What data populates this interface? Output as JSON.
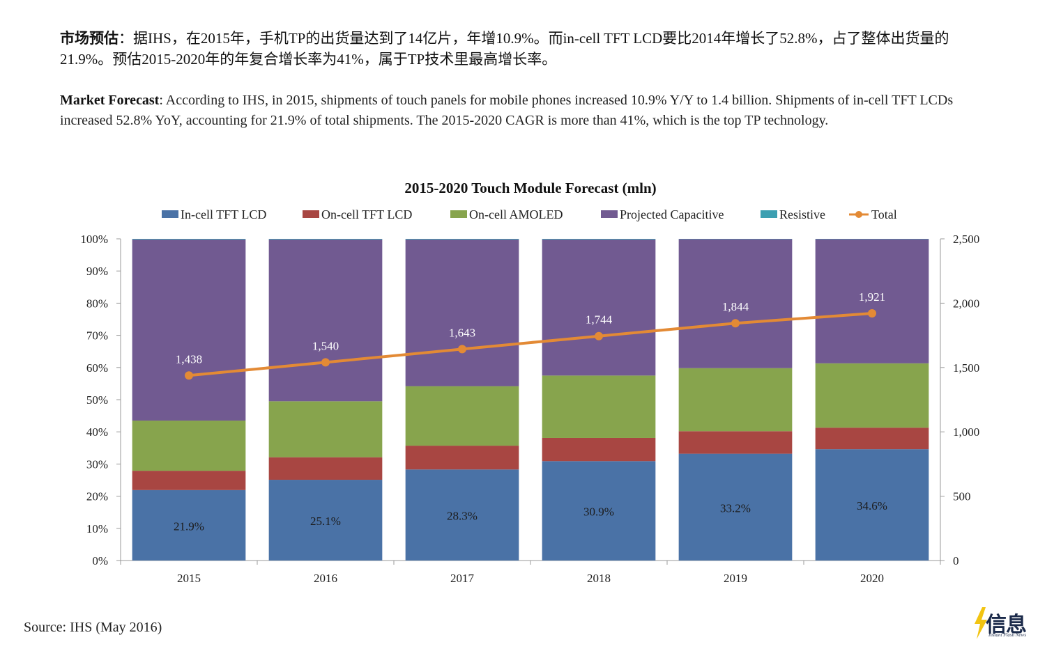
{
  "intro": {
    "zh_heading": "市场预估",
    "zh_body": "：据IHS，在2015年，手机TP的出货量达到了14亿片，年增10.9%。而in-cell TFT LCD要比2014年增长了52.8%，占了整体出货量的21.9%。预估2015-2020年的年复合增长率为41%，属于TP技术里最高增长率。",
    "en_heading": "Market Forecast",
    "en_body": ": According to IHS,  in 2015, shipments of touch panels for mobile phones increased 10.9% Y/Y to 1.4 billion. Shipments of in-cell TFT LCDs increased 52.8% YoY, accounting for 21.9% of total shipments. The 2015-2020 CAGR is more than 41%, which is the top TP technology."
  },
  "chart_data": {
    "type": "bar",
    "stacked": true,
    "title": "2015-2020 Touch Module Forecast (mln)",
    "categories": [
      "2015",
      "2016",
      "2017",
      "2018",
      "2019",
      "2020"
    ],
    "y_left": {
      "ticks": [
        "0%",
        "10%",
        "20%",
        "30%",
        "40%",
        "50%",
        "60%",
        "70%",
        "80%",
        "90%",
        "100%"
      ],
      "range": [
        0,
        100
      ]
    },
    "y_right": {
      "ticks": [
        "0",
        "500",
        "1,000",
        "1,500",
        "2,000",
        "2,500"
      ],
      "range": [
        0,
        2500
      ]
    },
    "legend_position": "top",
    "series": [
      {
        "name": "In-cell TFT LCD",
        "color": "#4a72a6",
        "values": [
          21.9,
          25.1,
          28.3,
          30.9,
          33.2,
          34.6
        ],
        "labels": [
          "21.9%",
          "25.1%",
          "28.3%",
          "30.9%",
          "33.2%",
          "34.6%"
        ]
      },
      {
        "name": "On-cell TFT LCD",
        "color": "#a84642",
        "values": [
          6.0,
          7.0,
          7.4,
          7.2,
          7.0,
          6.7
        ]
      },
      {
        "name": "On-cell AMOLED",
        "color": "#87a44d",
        "values": [
          15.6,
          17.4,
          18.5,
          19.4,
          19.6,
          20.0
        ]
      },
      {
        "name": "Projected Capacitive",
        "color": "#715a91",
        "values": [
          56.3,
          50.3,
          45.6,
          42.3,
          40.1,
          38.6
        ]
      },
      {
        "name": "Resistive",
        "color": "#3c9fb1",
        "values": [
          0.2,
          0.2,
          0.2,
          0.2,
          0.1,
          0.1
        ]
      }
    ],
    "line": {
      "name": "Total",
      "color": "#e38a35",
      "axis": "right",
      "values": [
        1438,
        1540,
        1643,
        1744,
        1844,
        1921
      ],
      "labels": [
        "1,438",
        "1,540",
        "1,643",
        "1,744",
        "1,844",
        "1,921"
      ]
    }
  },
  "source": "Source: IHS (May 2016)",
  "logo": {
    "zh": "信息",
    "en": "Instant Flash News",
    "bolt_color": "#f2c412"
  }
}
